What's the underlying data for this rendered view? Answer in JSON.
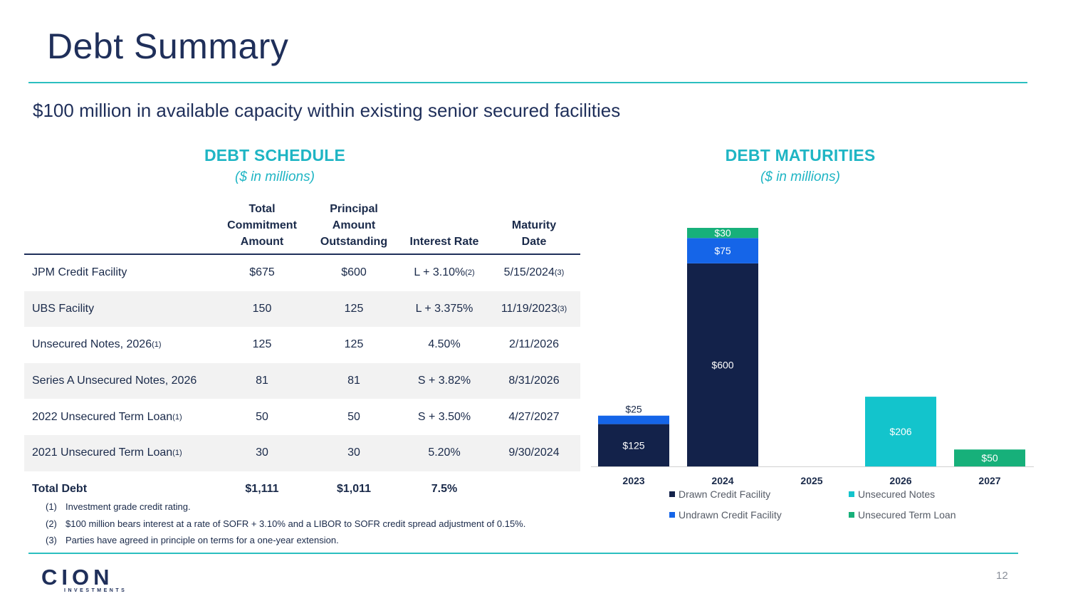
{
  "title": "Debt Summary",
  "subtitle": "$100 million in available capacity within existing senior secured facilities",
  "schedule": {
    "heading": "DEBT SCHEDULE",
    "units": "($ in millions)",
    "columns": [
      "Total\nCommitment\nAmount",
      "Principal\nAmount\nOutstanding",
      "Interest Rate",
      "Maturity\nDate"
    ],
    "rows": [
      {
        "name": "JPM Credit Facility",
        "name_sup": "",
        "commitment": "$675",
        "principal": "$600",
        "rate": "L + 3.10%",
        "rate_sup": "(2)",
        "maturity": "5/15/2024",
        "maturity_sup": "(3)"
      },
      {
        "name": "UBS Facility",
        "name_sup": "",
        "commitment": "150",
        "principal": "125",
        "rate": "L + 3.375%",
        "rate_sup": "",
        "maturity": "11/19/2023",
        "maturity_sup": "(3)"
      },
      {
        "name": "Unsecured Notes, 2026",
        "name_sup": "(1)",
        "commitment": "125",
        "principal": "125",
        "rate": "4.50%",
        "rate_sup": "",
        "maturity": "2/11/2026",
        "maturity_sup": ""
      },
      {
        "name": "Series A Unsecured Notes, 2026",
        "name_sup": "",
        "commitment": "81",
        "principal": "81",
        "rate": "S + 3.82%",
        "rate_sup": "",
        "maturity": "8/31/2026",
        "maturity_sup": ""
      },
      {
        "name": "2022 Unsecured Term Loan",
        "name_sup": "(1)",
        "commitment": "50",
        "principal": "50",
        "rate": "S + 3.50%",
        "rate_sup": "",
        "maturity": "4/27/2027",
        "maturity_sup": ""
      },
      {
        "name": "2021 Unsecured Term Loan",
        "name_sup": "(1)",
        "commitment": "30",
        "principal": "30",
        "rate": "5.20%",
        "rate_sup": "",
        "maturity": "9/30/2024",
        "maturity_sup": ""
      }
    ],
    "total": {
      "name": "Total Debt",
      "commitment": "$1,111",
      "principal": "$1,011",
      "rate": "7.5%",
      "maturity": ""
    },
    "notes": [
      {
        "num": "(1)",
        "text": "Investment grade credit rating."
      },
      {
        "num": "(2)",
        "text": "$100 million bears interest at a rate of SOFR + 3.10% and a LIBOR to SOFR credit spread adjustment of 0.15%."
      },
      {
        "num": "(3)",
        "text": "Parties have agreed in principle on terms for a one-year extension."
      }
    ]
  },
  "maturities": {
    "heading": "DEBT MATURITIES",
    "units": "($ in millions)"
  },
  "chart_data": {
    "type": "bar",
    "stacked": true,
    "title": "DEBT MATURITIES",
    "subtitle": "($ in millions)",
    "categories": [
      "2023",
      "2024",
      "2025",
      "2026",
      "2027"
    ],
    "series": [
      {
        "name": "Drawn Credit Facility",
        "color": "#13224a",
        "values": [
          125,
          600,
          0,
          0,
          0
        ],
        "labels": [
          "$125",
          "$600",
          "",
          "",
          ""
        ]
      },
      {
        "name": "Undrawn Credit Facility",
        "color": "#1565e8",
        "values": [
          25,
          75,
          0,
          0,
          0
        ],
        "labels": [
          "$25",
          "$75",
          "",
          "",
          ""
        ]
      },
      {
        "name": "Unsecured Notes",
        "color": "#13c4cc",
        "values": [
          0,
          0,
          0,
          206,
          0
        ],
        "labels": [
          "",
          "",
          "",
          "$206",
          ""
        ]
      },
      {
        "name": "Unsecured Term Loan",
        "color": "#17b07a",
        "values": [
          0,
          30,
          0,
          0,
          50
        ],
        "labels": [
          "",
          "$30",
          "",
          "",
          "$50"
        ]
      }
    ],
    "ylim": [
      0,
      705
    ],
    "grid": false,
    "legend": "bottom",
    "xlabel": "",
    "ylabel": ""
  },
  "footer": {
    "logo_text": "CION",
    "logo_sub": "INVESTMENTS",
    "page_number": "12"
  }
}
